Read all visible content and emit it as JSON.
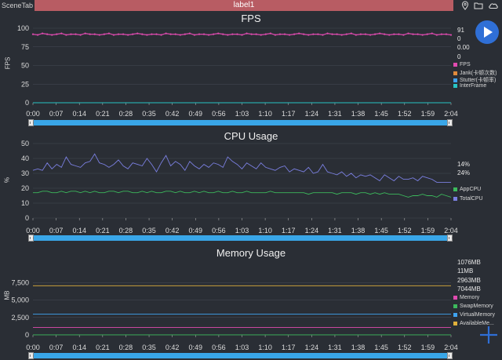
{
  "topbar": {
    "scene_tab": "SceneTab",
    "label": "label1"
  },
  "charts": {
    "fps": {
      "title": "FPS",
      "ylabel": "FPS",
      "legend_values": [
        {
          "text": "91",
          "color": "#e04bb0"
        },
        {
          "text": "0",
          "color": "#e08a3c"
        },
        {
          "text": "0.00",
          "color": "#3fa3f0"
        },
        {
          "text": "0",
          "color": "#27c4c4"
        }
      ],
      "legend": [
        {
          "text": "FPS",
          "color": "#e04bb0"
        },
        {
          "text": "Jank(卡顿次数)",
          "color": "#e08a3c"
        },
        {
          "text": "Stutter(卡顿率)",
          "color": "#3fa3f0"
        },
        {
          "text": "InterFrame",
          "color": "#27c4c4"
        }
      ]
    },
    "cpu": {
      "title": "CPU Usage",
      "ylabel": "%",
      "legend_values": [
        {
          "text": "14%",
          "color": "#3cb95c"
        },
        {
          "text": "24%",
          "color": "#7a7fe0"
        }
      ],
      "legend": [
        {
          "text": "AppCPU",
          "color": "#3cb95c"
        },
        {
          "text": "TotalCPU",
          "color": "#7a7fe0"
        }
      ]
    },
    "memory": {
      "title": "Memory Usage",
      "ylabel": "MB",
      "legend_values": [
        {
          "text": "1076MB",
          "color": "#e04bb0"
        },
        {
          "text": "11MB",
          "color": "#3cb95c"
        },
        {
          "text": "2963MB",
          "color": "#3fa3f0"
        },
        {
          "text": "7044MB",
          "color": "#e0b03c"
        }
      ],
      "legend": [
        {
          "text": "Memory",
          "color": "#e04bb0"
        },
        {
          "text": "SwapMemory",
          "color": "#3cb95c"
        },
        {
          "text": "VirtualMemory",
          "color": "#3fa3f0"
        },
        {
          "text": "AvailableMe...",
          "color": "#e0b03c"
        }
      ]
    }
  },
  "chart_data": [
    {
      "type": "line",
      "title": "FPS",
      "ylabel": "FPS",
      "ylim": [
        0,
        100
      ],
      "yticks": [
        "0",
        "25",
        "50",
        "75",
        "100"
      ],
      "x_ticks": [
        "0:00",
        "0:07",
        "0:14",
        "0:21",
        "0:28",
        "0:35",
        "0:42",
        "0:49",
        "0:56",
        "1:03",
        "1:10",
        "1:17",
        "1:24",
        "1:31",
        "1:38",
        "1:45",
        "1:52",
        "1:59",
        "2:04"
      ],
      "series": [
        {
          "name": "FPS",
          "color": "#e04bb0",
          "values": [
            92,
            91,
            93,
            92,
            91,
            92,
            93,
            91,
            92,
            92,
            91,
            93,
            92,
            92,
            91,
            92,
            93,
            91,
            92,
            92,
            91,
            92,
            93,
            92,
            91,
            92,
            92,
            91,
            93,
            92,
            92,
            91,
            92,
            93,
            91,
            92,
            92,
            91,
            92,
            93,
            92,
            91,
            92,
            92,
            91,
            93,
            92,
            92,
            91,
            92,
            93,
            91,
            92,
            92,
            91,
            92,
            93,
            92,
            91,
            92,
            92,
            91,
            93,
            92,
            92,
            91,
            92,
            93,
            91,
            92,
            92,
            91,
            92,
            93,
            92,
            91,
            92,
            92,
            91,
            93,
            92,
            92,
            91,
            92,
            93,
            91,
            92,
            92,
            91
          ]
        },
        {
          "name": "InterFrame",
          "color": "#27c4c4",
          "values": [
            0,
            0
          ]
        }
      ]
    },
    {
      "type": "line",
      "title": "CPU Usage",
      "ylabel": "%",
      "ylim": [
        0,
        50
      ],
      "yticks": [
        "0",
        "10",
        "20",
        "30",
        "40",
        "50"
      ],
      "x_ticks": [
        "0:00",
        "0:07",
        "0:14",
        "0:21",
        "0:28",
        "0:35",
        "0:42",
        "0:49",
        "0:56",
        "1:03",
        "1:10",
        "1:17",
        "1:24",
        "1:31",
        "1:38",
        "1:45",
        "1:52",
        "1:59",
        "2:04"
      ],
      "series": [
        {
          "name": "AppCPU",
          "color": "#3cb95c",
          "values": [
            17,
            17,
            18,
            18,
            17,
            17,
            18,
            17,
            18,
            18,
            17,
            18,
            17,
            18,
            17,
            17,
            18,
            18,
            17,
            18,
            18,
            17,
            17,
            18,
            17,
            18,
            17,
            17,
            18,
            18,
            17,
            18,
            17,
            17,
            18,
            17,
            18,
            17,
            17,
            18,
            17,
            17,
            18,
            17,
            17,
            18,
            17,
            17,
            17,
            17,
            18,
            17,
            17,
            17,
            17,
            17,
            17,
            17,
            16,
            17,
            17,
            17,
            17,
            17,
            16,
            17,
            17,
            17,
            16,
            17,
            17,
            16,
            17,
            16,
            17,
            16,
            16,
            16,
            15,
            14,
            15,
            15,
            16,
            15,
            15,
            14,
            16,
            15,
            14
          ]
        },
        {
          "name": "TotalCPU",
          "color": "#7a7fe0",
          "values": [
            32,
            33,
            32,
            37,
            33,
            36,
            34,
            41,
            36,
            35,
            34,
            37,
            38,
            43,
            37,
            36,
            34,
            36,
            39,
            35,
            33,
            37,
            36,
            35,
            40,
            36,
            31,
            37,
            42,
            35,
            38,
            36,
            32,
            38,
            35,
            33,
            36,
            34,
            37,
            36,
            34,
            41,
            38,
            36,
            33,
            37,
            35,
            33,
            37,
            34,
            33,
            32,
            34,
            35,
            31,
            33,
            32,
            31,
            34,
            30,
            31,
            36,
            31,
            30,
            29,
            31,
            28,
            30,
            27,
            29,
            28,
            29,
            27,
            25,
            29,
            27,
            25,
            28,
            26,
            26,
            27,
            25,
            28,
            27,
            26,
            24,
            24,
            24,
            24
          ]
        }
      ]
    },
    {
      "type": "line",
      "title": "Memory Usage",
      "ylabel": "MB",
      "ylim": [
        0,
        10000
      ],
      "yticks": [
        "0",
        "2,500",
        "5,000",
        "7,500"
      ],
      "x_ticks": [
        "0:00",
        "0:07",
        "0:14",
        "0:21",
        "0:28",
        "0:35",
        "0:42",
        "0:49",
        "0:56",
        "1:03",
        "1:10",
        "1:17",
        "1:24",
        "1:31",
        "1:38",
        "1:45",
        "1:52",
        "1:59",
        "2:04"
      ],
      "series": [
        {
          "name": "Memory",
          "color": "#e04bb0",
          "values": [
            1076,
            1076
          ]
        },
        {
          "name": "SwapMemory",
          "color": "#3cb95c",
          "values": [
            11,
            11
          ]
        },
        {
          "name": "VirtualMemory",
          "color": "#3fa3f0",
          "values": [
            2963,
            2963
          ]
        },
        {
          "name": "AvailableMe...",
          "color": "#e0b03c",
          "values": [
            7044,
            7044
          ]
        }
      ]
    }
  ]
}
